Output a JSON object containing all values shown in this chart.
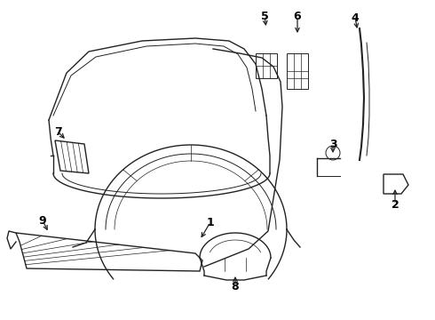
{
  "background_color": "#ffffff",
  "line_color": "#222222",
  "label_color": "#000000",
  "figsize": [
    4.9,
    3.6
  ],
  "dpi": 100
}
